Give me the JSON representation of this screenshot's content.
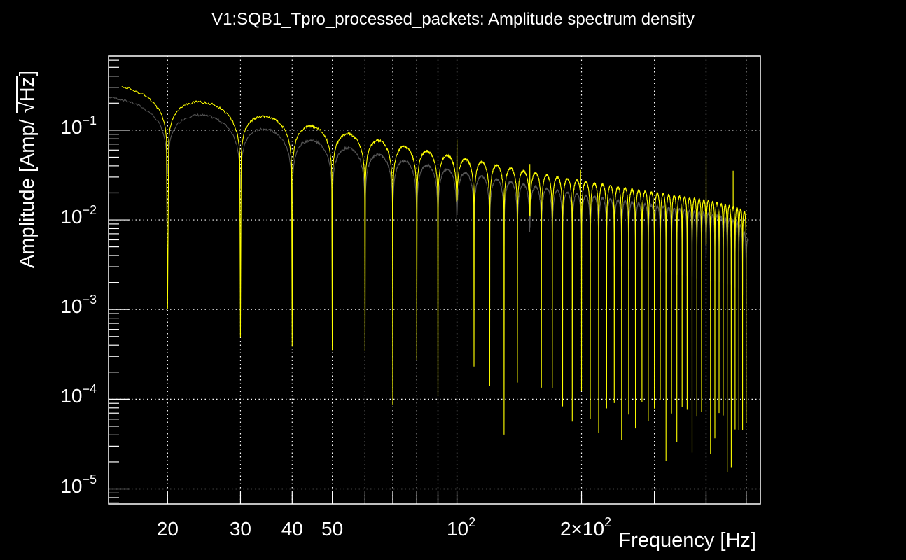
{
  "chart_data": {
    "type": "line",
    "title": "V1:SQB1_Tpro_processed_packets: Amplitude spectrum density",
    "xlabel": "Frequency [Hz]",
    "ylabel_prefix": "Amplitude [Amp/ ",
    "ylabel_sqrt": "Hz",
    "ylabel_suffix": "]",
    "xscale": "log",
    "yscale": "log",
    "xlim": [
      14.4,
      541
    ],
    "ylim": [
      6.8e-06,
      0.67
    ],
    "grid": true,
    "background": "#000000",
    "x_ticks": [
      {
        "value": 20,
        "base": "20",
        "exp": ""
      },
      {
        "value": 30,
        "base": "30",
        "exp": ""
      },
      {
        "value": 40,
        "base": "40",
        "exp": ""
      },
      {
        "value": 50,
        "base": "50",
        "exp": ""
      },
      {
        "value": 100,
        "base": "10",
        "exp": "2"
      },
      {
        "value": 200,
        "base": "2×10",
        "exp": "2"
      }
    ],
    "x_gridlines": [
      20,
      30,
      40,
      50,
      60,
      70,
      80,
      90,
      100,
      200,
      300,
      400,
      500
    ],
    "y_ticks": [
      {
        "value": 0.1,
        "base": "10",
        "exp": "−1"
      },
      {
        "value": 0.01,
        "base": "10",
        "exp": "−2"
      },
      {
        "value": 0.001,
        "base": "10",
        "exp": "−3"
      },
      {
        "value": 0.0001,
        "base": "10",
        "exp": "−4"
      },
      {
        "value": 1e-05,
        "base": "10",
        "exp": "−5"
      }
    ],
    "series": [
      {
        "name": "series-yellow",
        "color": "#ffff00",
        "f_start": 15.5,
        "f_end": 500,
        "notch_spacing_hz": 10,
        "notch_depth": 0.0025,
        "envelope": [
          [
            15.5,
            0.31
          ],
          [
            24,
            0.21
          ],
          [
            34,
            0.145
          ],
          [
            44,
            0.112
          ],
          [
            54,
            0.092
          ],
          [
            64,
            0.078
          ],
          [
            74,
            0.066
          ],
          [
            100,
            0.05
          ],
          [
            150,
            0.034
          ],
          [
            200,
            0.027
          ],
          [
            300,
            0.02
          ],
          [
            400,
            0.0165
          ],
          [
            480,
            0.0135
          ],
          [
            500,
            0.012
          ]
        ],
        "spikes": [
          [
            100,
            0.078
          ],
          [
            150,
            0.043
          ],
          [
            199,
            0.036
          ],
          [
            400,
            0.048
          ],
          [
            465,
            0.035
          ]
        ]
      },
      {
        "name": "series-gray",
        "color": "#555555",
        "f_start": 14.4,
        "f_end": 506,
        "notch_spacing_hz": 10,
        "notch_depth": 0.0018,
        "envelope": [
          [
            14.4,
            0.235
          ],
          [
            24,
            0.15
          ],
          [
            34,
            0.105
          ],
          [
            44,
            0.078
          ],
          [
            54,
            0.064
          ],
          [
            64,
            0.054
          ],
          [
            74,
            0.046
          ],
          [
            100,
            0.035
          ],
          [
            150,
            0.024
          ],
          [
            200,
            0.019
          ],
          [
            300,
            0.0145
          ],
          [
            400,
            0.012
          ],
          [
            480,
            0.0095
          ],
          [
            506,
            0.006
          ]
        ],
        "spikes": [
          [
            100,
            0.05
          ],
          [
            150,
            0.03
          ],
          [
            400,
            0.02
          ]
        ]
      }
    ]
  }
}
